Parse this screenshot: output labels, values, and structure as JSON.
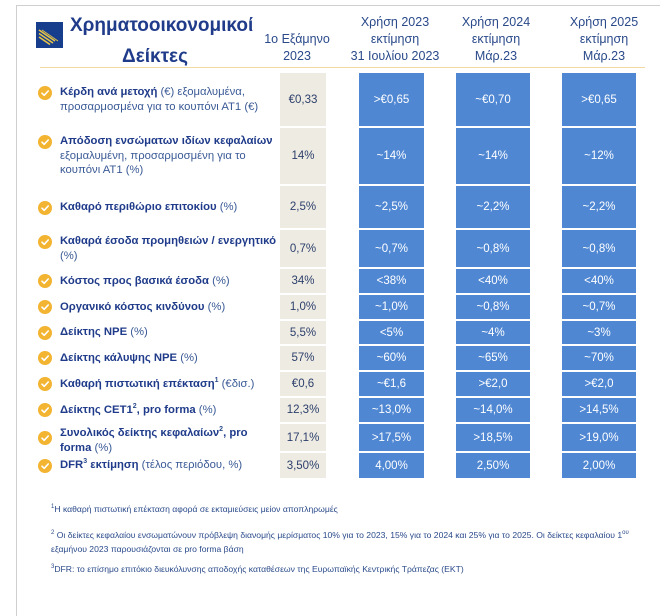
{
  "title": {
    "line1": "Χρηματοοικονομικοί",
    "line2": "Δείκτες"
  },
  "logo": {
    "icon": "bank-logo-icon",
    "colors": {
      "background": "#173e8c",
      "stripes": "#e8c547"
    }
  },
  "columns": [
    {
      "line1": "1ο Εξάμηνο",
      "line2": "2023",
      "line3": ""
    },
    {
      "line1": "Χρήση 2023",
      "line2": "εκτίμηση",
      "line3": "31 Ιουλίου 2023"
    },
    {
      "line1": "Χρήση 2024",
      "line2": "εκτίμηση",
      "line3": "Μάρ.23"
    },
    {
      "line1": "Χρήση 2025",
      "line2": "εκτίμηση",
      "line3": "Μάρ.23"
    }
  ],
  "colors": {
    "accent_blue": "#4f87d3",
    "actual_gray": "#eeebe3",
    "check_yellow": "#f2b431",
    "title_navy": "#1f3b8a",
    "divider_gold": "#f1d9a0"
  },
  "rows": [
    {
      "bold": "Κέρδη ανά μετοχή",
      "sup": "",
      "rest": " (€) εξομαλυμένα, προσαρμοσμένα για το κουπόνι ΑΤ1 (€)",
      "values": [
        "€0,33",
        ">€0,65",
        "~€0,70",
        ">€0,65"
      ]
    },
    {
      "bold": "Απόδοση ενσώματων ιδίων κεφαλαίων",
      "sup": "",
      "rest": " εξομαλυμένη, προσαρμοσμένη για το κουπόνι ΑΤ1 (%)",
      "values": [
        "14%",
        "~14%",
        "~14%",
        "~12%"
      ]
    },
    {
      "bold": "Καθαρό περιθώριο επιτοκίου",
      "sup": "",
      "rest": " (%)",
      "values": [
        "2,5%",
        "~2,5%",
        "~2,2%",
        "~2,2%"
      ]
    },
    {
      "bold": "Καθαρά έσοδα προμηθειών / ενεργητικό",
      "sup": "",
      "rest": " (%)",
      "values": [
        "0,7%",
        "~0,7%",
        "~0,8%",
        "~0,8%"
      ]
    },
    {
      "bold": "Κόστος προς βασικά έσοδα",
      "sup": "",
      "rest": " (%)",
      "values": [
        "34%",
        "<38%",
        "<40%",
        "<40%"
      ]
    },
    {
      "bold": "Οργανικό κόστος κινδύνου",
      "sup": "",
      "rest": " (%)",
      "values": [
        "1,0%",
        "~1,0%",
        "~0,8%",
        "~0,7%"
      ]
    },
    {
      "bold": "Δείκτης NPE",
      "sup": "",
      "rest": " (%)",
      "values": [
        "5,5%",
        "<5%",
        "~4%",
        "~3%"
      ]
    },
    {
      "bold": "Δείκτης κάλυψης NPE",
      "sup": "",
      "rest": "  (%)",
      "values": [
        "57%",
        "~60%",
        "~65%",
        "~70%"
      ]
    },
    {
      "bold": "Καθαρή πιστωτική επέκταση",
      "sup": "1",
      "rest": " (€δισ.)",
      "values": [
        "€0,6",
        "~€1,6",
        ">€2,0",
        ">€2,0"
      ]
    },
    {
      "bold": "Δείκτης CET1",
      "sup": "2",
      "rest_bold": ", pro forma",
      "rest": " (%)",
      "values": [
        "12,3%",
        "~13,0%",
        "~14,0%",
        ">14,5%"
      ]
    },
    {
      "bold": "Συνολικός δείκτης κεφαλαίων",
      "sup": "2",
      "rest_bold": ", pro forma",
      "rest": " (%)",
      "values": [
        "17,1%",
        ">17,5%",
        ">18,5%",
        ">19,0%"
      ]
    },
    {
      "bold": "DFR",
      "sup": "3",
      "rest_bold": " εκτίμηση",
      "rest": " (τέλος περιόδου, %)",
      "values": [
        "3,50%",
        "4,00%",
        "2,50%",
        "2,00%"
      ]
    }
  ],
  "footnotes": [
    {
      "mark": "1",
      "text": "Η καθαρή πιστωτική επέκταση αφορά σε εκταμιεύσεις μείον αποπληρωμές"
    },
    {
      "mark": "2",
      "text": "Οι δείκτες κεφαλαίου ενσωματώνουν πρόβλεψη διανομής μερίσματος 10% για το 2023, 15% για το 2024 και 25% για το 2025. Οι δείκτες κεφαλαίου 1",
      "sup2": "ου",
      "text2": " εξαμήνου 2023 παρουσιάζονται σε pro forma βάση"
    },
    {
      "mark": "3",
      "text": "DFR: το επίσημο επιτόκιο διευκόλυνσης αποδοχής καταθέσεων της Ευρωπαϊκής Κεντρικής Τράπεζας (ΕΚΤ)"
    }
  ]
}
